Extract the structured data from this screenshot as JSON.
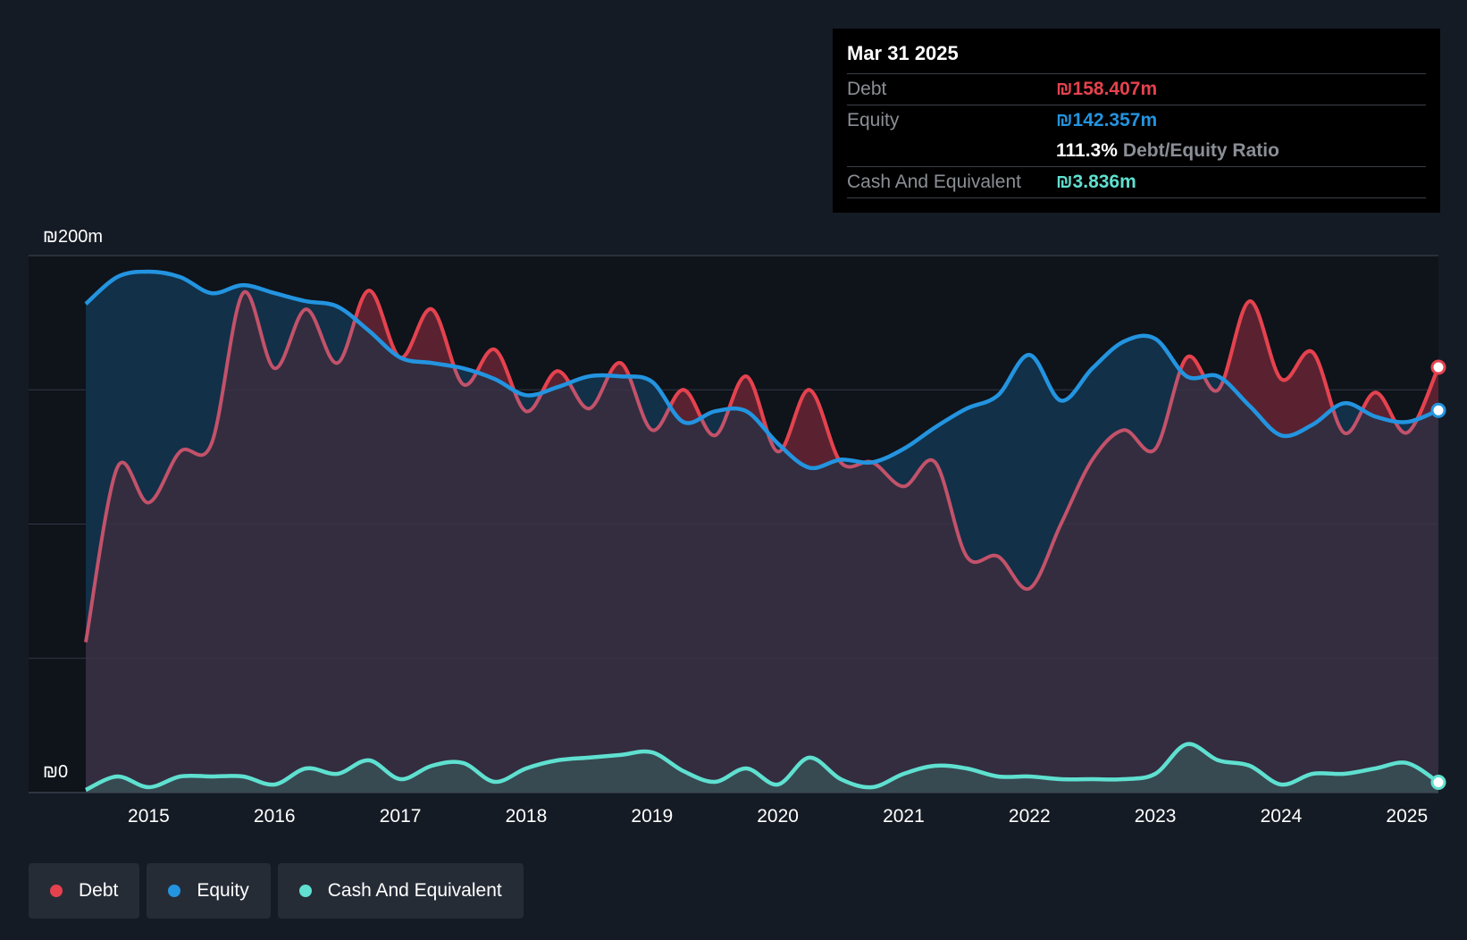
{
  "colors": {
    "debt": "#e5424e",
    "equity": "#2394e0",
    "cash": "#5fe0d0",
    "background": "#151b24",
    "plot_background": "#0f131a",
    "grid": "#323844",
    "axis_text": "#ffffff"
  },
  "tooltip": {
    "date": "Mar 31 2025",
    "debt_label": "Debt",
    "debt_value": "₪158.407m",
    "equity_label": "Equity",
    "equity_value": "₪142.357m",
    "ratio_value": "111.3%",
    "ratio_label": "Debt/Equity Ratio",
    "cash_label": "Cash And Equivalent",
    "cash_value": "₪3.836m"
  },
  "legend": {
    "debt": "Debt",
    "equity": "Equity",
    "cash": "Cash And Equivalent"
  },
  "chart_data": {
    "type": "area",
    "title": "",
    "xlabel": "",
    "ylabel": "",
    "y_top_label": "₪200m",
    "y_bottom_label": "₪0",
    "ylim": [
      0,
      200
    ],
    "xlim": [
      2014.5,
      2025.25
    ],
    "grid": true,
    "x_ticks": [
      2015,
      2016,
      2017,
      2018,
      2019,
      2020,
      2021,
      2022,
      2023,
      2024,
      2025
    ],
    "x_tick_labels": [
      "2015",
      "2016",
      "2017",
      "2018",
      "2019",
      "2020",
      "2021",
      "2022",
      "2023",
      "2024",
      "2025"
    ],
    "series": [
      {
        "name": "Equity",
        "color_key": "equity",
        "points": [
          [
            2014.5,
            182
          ],
          [
            2014.75,
            192
          ],
          [
            2015.0,
            194
          ],
          [
            2015.25,
            192
          ],
          [
            2015.5,
            186
          ],
          [
            2015.75,
            189
          ],
          [
            2016.0,
            186
          ],
          [
            2016.25,
            183
          ],
          [
            2016.5,
            181
          ],
          [
            2016.75,
            172
          ],
          [
            2017.0,
            162
          ],
          [
            2017.25,
            160
          ],
          [
            2017.5,
            158
          ],
          [
            2017.75,
            154
          ],
          [
            2018.0,
            148
          ],
          [
            2018.25,
            151
          ],
          [
            2018.5,
            155
          ],
          [
            2018.75,
            155
          ],
          [
            2019.0,
            153
          ],
          [
            2019.25,
            138
          ],
          [
            2019.5,
            142
          ],
          [
            2019.75,
            142
          ],
          [
            2020.0,
            130
          ],
          [
            2020.25,
            121
          ],
          [
            2020.5,
            124
          ],
          [
            2020.75,
            123
          ],
          [
            2021.0,
            128
          ],
          [
            2021.25,
            136
          ],
          [
            2021.5,
            143
          ],
          [
            2021.75,
            148
          ],
          [
            2022.0,
            163
          ],
          [
            2022.25,
            146
          ],
          [
            2022.5,
            158
          ],
          [
            2022.75,
            168
          ],
          [
            2023.0,
            169
          ],
          [
            2023.25,
            155
          ],
          [
            2023.5,
            155
          ],
          [
            2023.75,
            144
          ],
          [
            2024.0,
            133
          ],
          [
            2024.25,
            137
          ],
          [
            2024.5,
            145
          ],
          [
            2024.75,
            140
          ],
          [
            2025.0,
            138
          ],
          [
            2025.25,
            142.357
          ]
        ]
      },
      {
        "name": "Debt",
        "color_key": "debt",
        "points": [
          [
            2014.5,
            56
          ],
          [
            2014.75,
            121
          ],
          [
            2015.0,
            108
          ],
          [
            2015.25,
            127
          ],
          [
            2015.5,
            130
          ],
          [
            2015.75,
            186
          ],
          [
            2016.0,
            158
          ],
          [
            2016.25,
            180
          ],
          [
            2016.5,
            160
          ],
          [
            2016.75,
            187
          ],
          [
            2017.0,
            162
          ],
          [
            2017.25,
            180
          ],
          [
            2017.5,
            152
          ],
          [
            2017.75,
            165
          ],
          [
            2018.0,
            142
          ],
          [
            2018.25,
            157
          ],
          [
            2018.5,
            143
          ],
          [
            2018.75,
            160
          ],
          [
            2019.0,
            135
          ],
          [
            2019.25,
            150
          ],
          [
            2019.5,
            133
          ],
          [
            2019.75,
            155
          ],
          [
            2020.0,
            127
          ],
          [
            2020.25,
            150
          ],
          [
            2020.5,
            123
          ],
          [
            2020.75,
            123
          ],
          [
            2021.0,
            114
          ],
          [
            2021.25,
            123
          ],
          [
            2021.5,
            88
          ],
          [
            2021.75,
            88
          ],
          [
            2022.0,
            76
          ],
          [
            2022.25,
            100
          ],
          [
            2022.5,
            124
          ],
          [
            2022.75,
            135
          ],
          [
            2023.0,
            128
          ],
          [
            2023.25,
            162
          ],
          [
            2023.5,
            150
          ],
          [
            2023.75,
            183
          ],
          [
            2024.0,
            154
          ],
          [
            2024.25,
            164
          ],
          [
            2024.5,
            134
          ],
          [
            2024.75,
            149
          ],
          [
            2025.0,
            134
          ],
          [
            2025.25,
            158.407
          ]
        ]
      },
      {
        "name": "Cash And Equivalent",
        "color_key": "cash",
        "points": [
          [
            2014.5,
            1
          ],
          [
            2014.75,
            6
          ],
          [
            2015.0,
            2
          ],
          [
            2015.25,
            6
          ],
          [
            2015.5,
            6
          ],
          [
            2015.75,
            6
          ],
          [
            2016.0,
            3
          ],
          [
            2016.25,
            9
          ],
          [
            2016.5,
            7
          ],
          [
            2016.75,
            12
          ],
          [
            2017.0,
            5
          ],
          [
            2017.25,
            10
          ],
          [
            2017.5,
            11
          ],
          [
            2017.75,
            4
          ],
          [
            2018.0,
            9
          ],
          [
            2018.25,
            12
          ],
          [
            2018.5,
            13
          ],
          [
            2018.75,
            14
          ],
          [
            2019.0,
            15
          ],
          [
            2019.25,
            8
          ],
          [
            2019.5,
            4
          ],
          [
            2019.75,
            9
          ],
          [
            2020.0,
            3
          ],
          [
            2020.25,
            13
          ],
          [
            2020.5,
            5
          ],
          [
            2020.75,
            2
          ],
          [
            2021.0,
            7
          ],
          [
            2021.25,
            10
          ],
          [
            2021.5,
            9
          ],
          [
            2021.75,
            6
          ],
          [
            2022.0,
            6
          ],
          [
            2022.25,
            5
          ],
          [
            2022.5,
            5
          ],
          [
            2022.75,
            5
          ],
          [
            2023.0,
            7
          ],
          [
            2023.25,
            18
          ],
          [
            2023.5,
            12
          ],
          [
            2023.75,
            10
          ],
          [
            2024.0,
            3
          ],
          [
            2024.25,
            7
          ],
          [
            2024.5,
            7
          ],
          [
            2024.75,
            9
          ],
          [
            2025.0,
            11
          ],
          [
            2025.25,
            3.836
          ]
        ]
      }
    ]
  }
}
